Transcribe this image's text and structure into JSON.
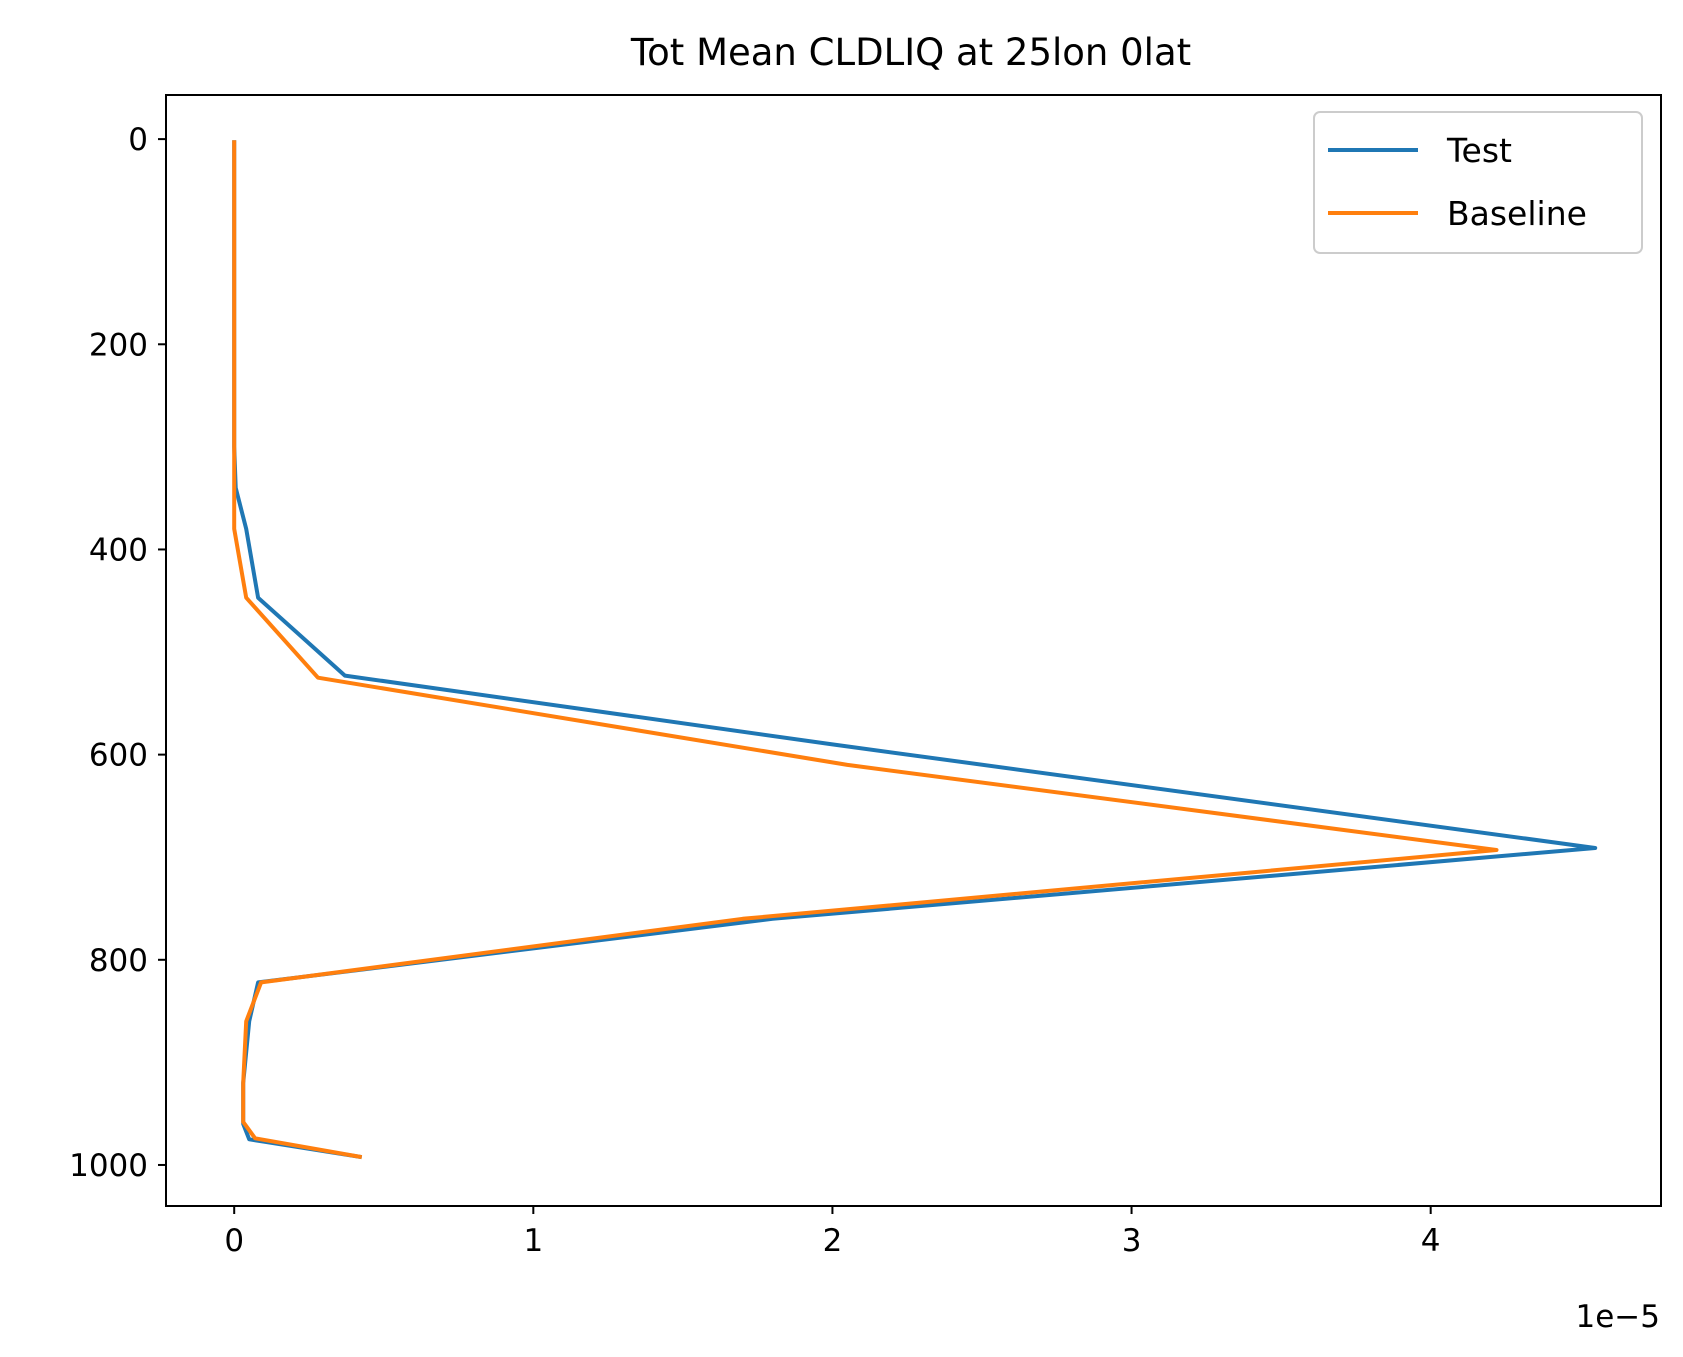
{
  "chart_data": {
    "type": "line",
    "title": "Tot Mean CLDLIQ at 25lon 0lat",
    "xlabel": "",
    "ylabel": "",
    "x_offset_text": "1e−5",
    "x_multiplier": 1e-05,
    "xlim": [
      -0.228,
      4.77
    ],
    "ylim": [
      1040,
      -43
    ],
    "y_inverted": true,
    "grid": false,
    "legend_position": "top-right",
    "x_ticks": [
      0,
      1,
      2,
      3,
      4
    ],
    "x_tick_labels": [
      "0",
      "1",
      "2",
      "3",
      "4"
    ],
    "y_ticks": [
      0,
      200,
      400,
      600,
      800,
      1000
    ],
    "y_tick_labels": [
      "0",
      "200",
      "400",
      "600",
      "800",
      "1000"
    ],
    "series": [
      {
        "name": "Test",
        "color": "#1f77b4",
        "x": [
          0.0,
          0.0,
          0.0,
          0.0,
          0.0,
          0.0,
          0.0,
          0.0,
          0.005,
          0.04,
          0.08,
          0.37,
          2.0,
          4.55,
          1.8,
          0.08,
          0.05,
          0.03,
          0.03,
          0.05,
          0.42
        ],
        "y": [
          3,
          50,
          100,
          150,
          200,
          250,
          270,
          300,
          340,
          380,
          447,
          523,
          590,
          691,
          760,
          822,
          860,
          920,
          960,
          975,
          992
        ]
      },
      {
        "name": "Baseline",
        "color": "#ff7f0e",
        "x": [
          0.0,
          0.0,
          0.0,
          0.0,
          0.0,
          0.0,
          0.0,
          0.0,
          0.0,
          0.0,
          0.04,
          0.28,
          2.05,
          4.22,
          1.7,
          0.09,
          0.04,
          0.03,
          0.03,
          0.07,
          0.42
        ],
        "y": [
          3,
          50,
          100,
          150,
          200,
          250,
          270,
          300,
          340,
          380,
          447,
          525,
          610,
          693,
          760,
          822,
          860,
          920,
          958,
          974,
          992
        ]
      }
    ]
  }
}
